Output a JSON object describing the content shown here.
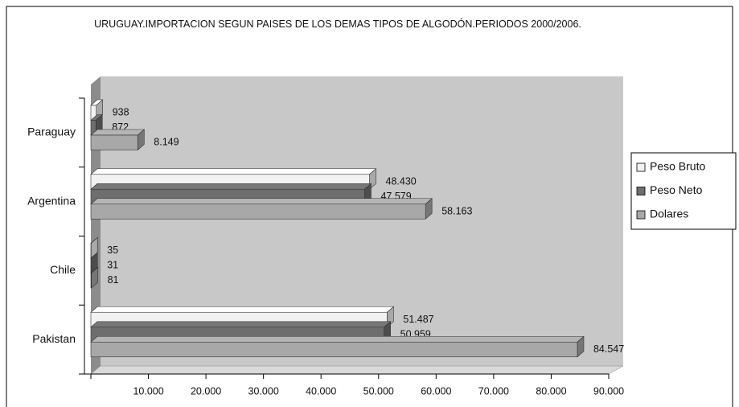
{
  "chart_data": {
    "type": "bar",
    "orientation": "horizontal",
    "title": "URUGUAY.IMPORTACION SEGUN PAISES DE LOS DEMAS TIPOS DE ALGODÓN.PERIODOS 2000/2006.",
    "categories": [
      "Paraguay",
      "Argentina",
      "Chile",
      "Pakistan"
    ],
    "series": [
      {
        "name": "Peso Bruto",
        "color": "#f2f2f2",
        "values": [
          938,
          48430,
          35,
          51487
        ],
        "value_labels": [
          "938",
          "48.430",
          "35",
          "51.487"
        ]
      },
      {
        "name": "Peso Neto",
        "color": "#6e6e6e",
        "values": [
          872,
          47579,
          31,
          50959
        ],
        "value_labels": [
          "872",
          "47.579",
          "31",
          "50.959"
        ]
      },
      {
        "name": "Dolares",
        "color": "#a8a8a8",
        "values": [
          8149,
          58163,
          81,
          84547
        ],
        "value_labels": [
          "8.149",
          "58.163",
          "81",
          "84.547"
        ]
      }
    ],
    "xlim": [
      0,
      90000
    ],
    "xticks": [
      {
        "value": 10000,
        "label": "10.000"
      },
      {
        "value": 20000,
        "label": "20.000"
      },
      {
        "value": 30000,
        "label": "30.000"
      },
      {
        "value": 40000,
        "label": "40.000"
      },
      {
        "value": 50000,
        "label": "50.000"
      },
      {
        "value": 60000,
        "label": "60.000"
      },
      {
        "value": 70000,
        "label": "70.000"
      },
      {
        "value": 80000,
        "label": "80.000"
      },
      {
        "value": 90000,
        "label": "90.000"
      }
    ],
    "legend": "right"
  }
}
